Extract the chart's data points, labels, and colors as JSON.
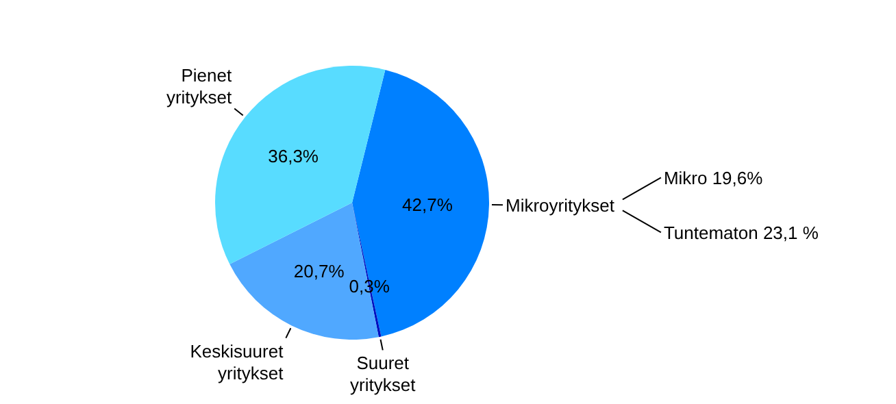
{
  "chart_data": {
    "type": "pie",
    "categories": [
      "Mikroyritykset",
      "Suuret yritykset",
      "Keskisuuret yritykset",
      "Pienet yritykset"
    ],
    "values": [
      42.7,
      0.3,
      20.7,
      36.3
    ],
    "value_labels": [
      "42,7%",
      "0,3%",
      "20,7%",
      "36,3%"
    ],
    "colors": [
      "#0080ff",
      "#0010c0",
      "#50a8ff",
      "#58dcff"
    ],
    "annotations": [
      "Mikro 19,6%",
      "Tuntematon 23,1 %"
    ]
  }
}
